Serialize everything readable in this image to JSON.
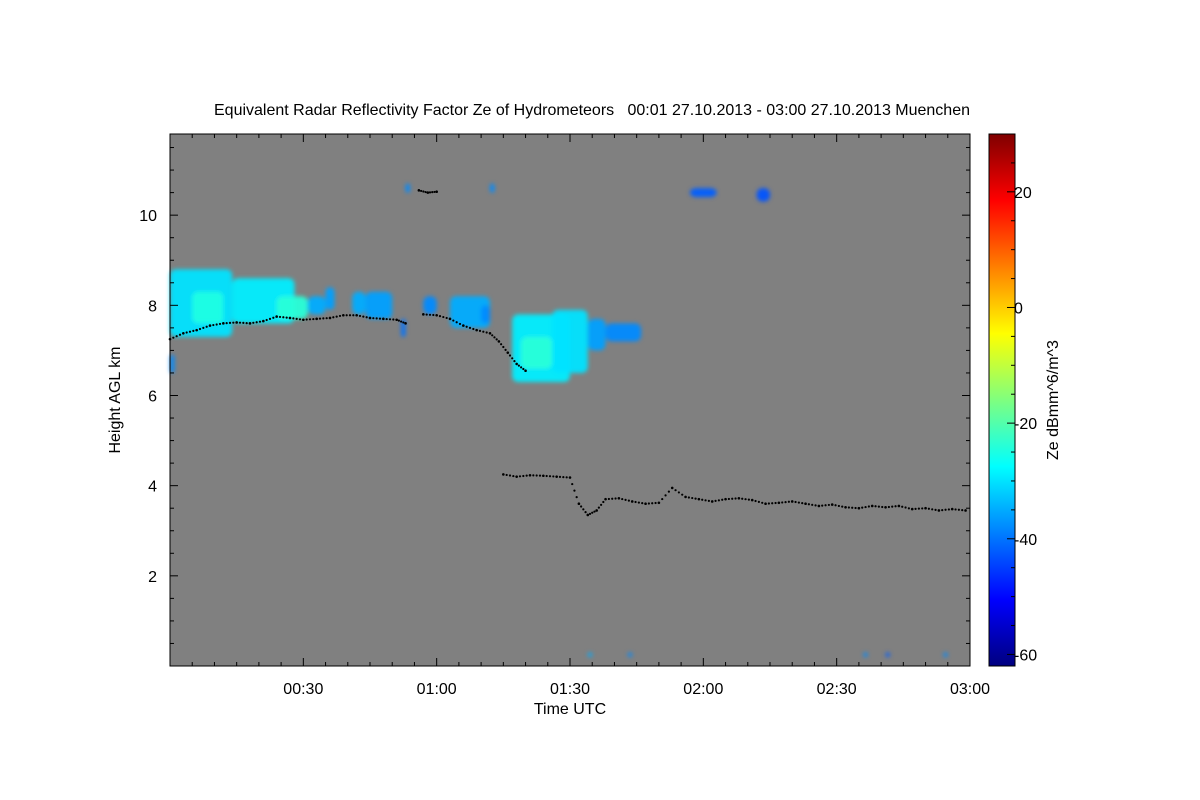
{
  "chart_data": {
    "type": "heatmap",
    "title": "Equivalent Radar Reflectivity Factor Ze of Hydrometeors   00:01 27.10.2013 - 03:00 27.10.2013 Muenchen",
    "xlabel": "Time UTC",
    "ylabel": "Height AGL km",
    "xlim_minutes": [
      0,
      180
    ],
    "ylim_km": [
      0,
      11.8
    ],
    "x_ticks": [
      {
        "minute": 30,
        "label": "00:30"
      },
      {
        "minute": 60,
        "label": "01:00"
      },
      {
        "minute": 90,
        "label": "01:30"
      },
      {
        "minute": 120,
        "label": "02:00"
      },
      {
        "minute": 150,
        "label": "02:30"
      },
      {
        "minute": 180,
        "label": "03:00"
      }
    ],
    "y_ticks": [
      {
        "km": 2,
        "label": "2"
      },
      {
        "km": 4,
        "label": "4"
      },
      {
        "km": 6,
        "label": "6"
      },
      {
        "km": 8,
        "label": "8"
      },
      {
        "km": 10,
        "label": "10"
      }
    ],
    "background_color": "#808080",
    "colorbar": {
      "label": "Ze dBmm^6/m^3",
      "range": [
        -62,
        30
      ],
      "ticks": [
        {
          "value": 20,
          "label": "20"
        },
        {
          "value": 0,
          "label": "0"
        },
        {
          "value": -20,
          "label": "-20"
        },
        {
          "value": -40,
          "label": "-40"
        },
        {
          "value": -60,
          "label": "-60"
        }
      ],
      "colormap": [
        "#00007f",
        "#0000ff",
        "#007fff",
        "#00ffff",
        "#7fff7f",
        "#ffff00",
        "#ff7f00",
        "#ff0000",
        "#7f0000"
      ]
    },
    "echo_regions": [
      {
        "t0": 0,
        "t1": 14,
        "h0": 7.3,
        "h1": 8.8,
        "ze": -30
      },
      {
        "t0": 5,
        "t1": 12,
        "h0": 7.6,
        "h1": 8.3,
        "ze": -25
      },
      {
        "t0": 14,
        "t1": 28,
        "h0": 7.6,
        "h1": 8.6,
        "ze": -29
      },
      {
        "t0": 24,
        "t1": 31,
        "h0": 7.7,
        "h1": 8.2,
        "ze": -24
      },
      {
        "t0": 31,
        "t1": 35,
        "h0": 7.8,
        "h1": 8.2,
        "ze": -35
      },
      {
        "t0": 35,
        "t1": 37,
        "h0": 7.9,
        "h1": 8.4,
        "ze": -36
      },
      {
        "t0": 41,
        "t1": 44,
        "h0": 7.8,
        "h1": 8.3,
        "ze": -35
      },
      {
        "t0": 44,
        "t1": 50,
        "h0": 7.7,
        "h1": 8.3,
        "ze": -36
      },
      {
        "t0": 52,
        "t1": 53,
        "h0": 7.3,
        "h1": 7.7,
        "ze": -40
      },
      {
        "t0": 57,
        "t1": 60,
        "h0": 7.8,
        "h1": 8.2,
        "ze": -38
      },
      {
        "t0": 63,
        "t1": 72,
        "h0": 7.5,
        "h1": 8.2,
        "ze": -35
      },
      {
        "t0": 70,
        "t1": 72,
        "h0": 7.6,
        "h1": 8.0,
        "ze": -38
      },
      {
        "t0": 77,
        "t1": 90,
        "h0": 6.3,
        "h1": 7.8,
        "ze": -29
      },
      {
        "t0": 79,
        "t1": 86,
        "h0": 6.6,
        "h1": 7.3,
        "ze": -24
      },
      {
        "t0": 86,
        "t1": 94,
        "h0": 6.5,
        "h1": 7.9,
        "ze": -30
      },
      {
        "t0": 94,
        "t1": 98,
        "h0": 7.0,
        "h1": 7.7,
        "ze": -36
      },
      {
        "t0": 98,
        "t1": 106,
        "h0": 7.2,
        "h1": 7.6,
        "ze": -38
      },
      {
        "t0": 0,
        "t1": 1,
        "h0": 6.5,
        "h1": 6.9,
        "ze": -38
      },
      {
        "t0": 53,
        "t1": 54,
        "h0": 10.5,
        "h1": 10.7,
        "ze": -38
      },
      {
        "t0": 72,
        "t1": 73,
        "h0": 10.5,
        "h1": 10.7,
        "ze": -38
      },
      {
        "t0": 117,
        "t1": 123,
        "h0": 10.4,
        "h1": 10.6,
        "ze": -42
      },
      {
        "t0": 132,
        "t1": 135,
        "h0": 10.3,
        "h1": 10.6,
        "ze": -43
      },
      {
        "t0": 94,
        "t1": 95,
        "h0": 0.2,
        "h1": 0.3,
        "ze": -35
      },
      {
        "t0": 103,
        "t1": 104,
        "h0": 0.2,
        "h1": 0.3,
        "ze": -38
      },
      {
        "t0": 156,
        "t1": 157,
        "h0": 0.2,
        "h1": 0.3,
        "ze": -38
      },
      {
        "t0": 161,
        "t1": 162,
        "h0": 0.2,
        "h1": 0.3,
        "ze": -42
      },
      {
        "t0": 174,
        "t1": 175,
        "h0": 0.2,
        "h1": 0.3,
        "ze": -38
      }
    ],
    "cloud_base_series": [
      {
        "segment": "upper",
        "points": [
          [
            0,
            7.25
          ],
          [
            3,
            7.38
          ],
          [
            6,
            7.45
          ],
          [
            9,
            7.55
          ],
          [
            12,
            7.6
          ],
          [
            15,
            7.62
          ],
          [
            18,
            7.6
          ],
          [
            21,
            7.65
          ],
          [
            24,
            7.75
          ],
          [
            27,
            7.72
          ],
          [
            30,
            7.68
          ],
          [
            33,
            7.7
          ],
          [
            36,
            7.72
          ],
          [
            39,
            7.78
          ],
          [
            42,
            7.78
          ],
          [
            45,
            7.72
          ],
          [
            48,
            7.7
          ],
          [
            51,
            7.68
          ],
          [
            53,
            7.6
          ],
          [
            56,
            10.55
          ],
          [
            58,
            10.5
          ],
          [
            60,
            10.52
          ],
          [
            57,
            7.8
          ],
          [
            60,
            7.78
          ],
          [
            63,
            7.7
          ],
          [
            66,
            7.55
          ],
          [
            69,
            7.45
          ],
          [
            72,
            7.38
          ],
          [
            74,
            7.2
          ],
          [
            76,
            6.95
          ],
          [
            78,
            6.7
          ],
          [
            80,
            6.55
          ]
        ]
      },
      {
        "segment": "lower",
        "points": [
          [
            75,
            4.25
          ],
          [
            78,
            4.2
          ],
          [
            81,
            4.23
          ],
          [
            84,
            4.22
          ],
          [
            87,
            4.2
          ],
          [
            90,
            4.18
          ],
          [
            92,
            3.6
          ],
          [
            94,
            3.35
          ],
          [
            96,
            3.45
          ],
          [
            98,
            3.7
          ],
          [
            101,
            3.72
          ],
          [
            104,
            3.65
          ],
          [
            107,
            3.6
          ],
          [
            110,
            3.62
          ],
          [
            113,
            3.95
          ],
          [
            116,
            3.75
          ],
          [
            119,
            3.7
          ],
          [
            122,
            3.65
          ],
          [
            125,
            3.7
          ],
          [
            128,
            3.72
          ],
          [
            131,
            3.68
          ],
          [
            134,
            3.6
          ],
          [
            137,
            3.62
          ],
          [
            140,
            3.65
          ],
          [
            143,
            3.6
          ],
          [
            146,
            3.55
          ],
          [
            149,
            3.58
          ],
          [
            152,
            3.52
          ],
          [
            155,
            3.5
          ],
          [
            158,
            3.55
          ],
          [
            161,
            3.52
          ],
          [
            164,
            3.55
          ],
          [
            167,
            3.48
          ],
          [
            170,
            3.5
          ],
          [
            173,
            3.45
          ],
          [
            176,
            3.48
          ],
          [
            179,
            3.45
          ]
        ]
      }
    ]
  }
}
